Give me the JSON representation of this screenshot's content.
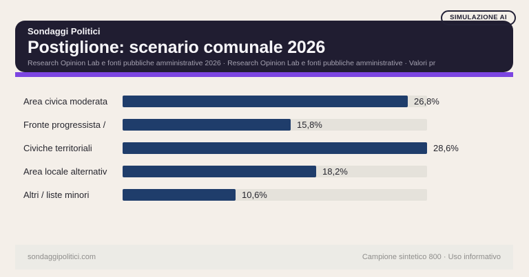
{
  "badge": {
    "label": "SIMULAZIONE AI"
  },
  "header": {
    "kicker": "Sondaggi Politici",
    "title": "Postiglione: scenario comunale 2026",
    "subtitle": "Research Opinion Lab e fonti pubbliche amministrative 2026 · Research Opinion Lab e fonti pubbliche amministrative · Valori pr"
  },
  "chart_data": {
    "type": "bar",
    "orientation": "horizontal",
    "title": "Postiglione: scenario comunale 2026",
    "categories": [
      "Area civica moderata",
      "Fronte progressista /",
      "Civiche territoriali",
      "Area locale alternativ",
      "Altri / liste minori"
    ],
    "values": [
      26.8,
      15.8,
      28.6,
      18.2,
      10.6
    ],
    "value_labels": [
      "26,8%",
      "15,8%",
      "28,6%",
      "18,2%",
      "10,6%"
    ],
    "unit": "%",
    "xlim": [
      0,
      28.6
    ],
    "grid": false,
    "legend": false,
    "bar_color": "#1f3d6b",
    "track_color": "#e5e2db"
  },
  "footer": {
    "left": "sondaggipolitici.com",
    "right": "Campione sintetico 800 · Uso informativo"
  },
  "colors": {
    "page_bg": "#f4efe9",
    "header_bg": "#201d31",
    "accent_purple": "#7c45e1",
    "bar_fill": "#1f3d6b",
    "bar_track": "#e5e2db",
    "footer_band": "#ecebe6",
    "subtitle_text": "#a4a1b0",
    "footer_text": "#8f8e8c",
    "body_text": "#26262e"
  }
}
